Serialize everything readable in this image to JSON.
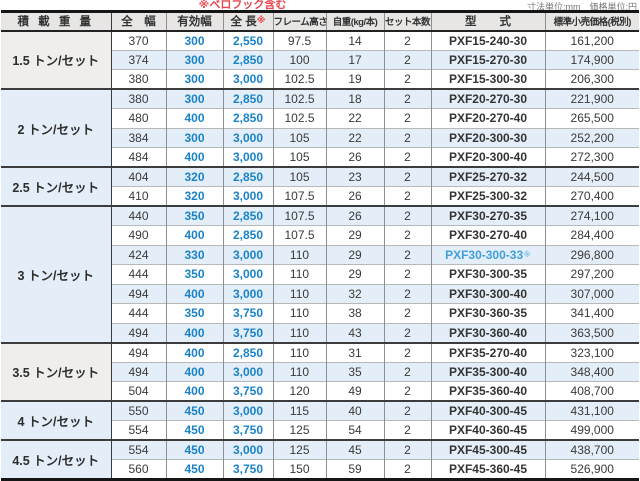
{
  "notes": {
    "hook_note": "※ベロフック含む",
    "units_note": "寸法単位:mm　価格単位:円"
  },
  "colors": {
    "accent_blue": "#1a83c8",
    "model_blue": "#3fa0dd",
    "note_red": "#e8474d",
    "stripe_blue": "#e4eef8",
    "header_gray": "#e7e6e4"
  },
  "table": {
    "headers": [
      "積 載 重 量",
      "全　幅",
      "有効幅",
      "全 長",
      "フレーム高さ",
      "自重(kg/本)",
      "セット本数",
      "型　　式",
      "標準小売価格(税別)"
    ],
    "header_note_mark": "※",
    "groups": [
      {
        "label": "1.5 トン/セット",
        "rows": [
          {
            "total_width": "370",
            "effective_width": "300",
            "total_length": "2,550",
            "frame_height": "97.5",
            "weight_kg": "14",
            "set_count": "2",
            "model": "PXF15-240-30",
            "price": "161,200"
          },
          {
            "total_width": "374",
            "effective_width": "300",
            "total_length": "2,850",
            "frame_height": "100",
            "weight_kg": "17",
            "set_count": "2",
            "model": "PXF15-270-30",
            "price": "174,900"
          },
          {
            "total_width": "380",
            "effective_width": "300",
            "total_length": "3,000",
            "frame_height": "102.5",
            "weight_kg": "19",
            "set_count": "2",
            "model": "PXF15-300-30",
            "price": "206,300"
          }
        ]
      },
      {
        "label": "2 トン/セット",
        "rows": [
          {
            "total_width": "380",
            "effective_width": "300",
            "total_length": "2,850",
            "frame_height": "102.5",
            "weight_kg": "18",
            "set_count": "2",
            "model": "PXF20-270-30",
            "price": "221,900"
          },
          {
            "total_width": "480",
            "effective_width": "400",
            "total_length": "2,850",
            "frame_height": "102.5",
            "weight_kg": "22",
            "set_count": "2",
            "model": "PXF20-270-40",
            "price": "265,500"
          },
          {
            "total_width": "384",
            "effective_width": "300",
            "total_length": "3,000",
            "frame_height": "105",
            "weight_kg": "22",
            "set_count": "2",
            "model": "PXF20-300-30",
            "price": "252,200"
          },
          {
            "total_width": "484",
            "effective_width": "400",
            "total_length": "3,000",
            "frame_height": "105",
            "weight_kg": "26",
            "set_count": "2",
            "model": "PXF20-300-40",
            "price": "272,300"
          }
        ]
      },
      {
        "label": "2.5 トン/セット",
        "rows": [
          {
            "total_width": "404",
            "effective_width": "320",
            "total_length": "2,850",
            "frame_height": "105",
            "weight_kg": "23",
            "set_count": "2",
            "model": "PXF25-270-32",
            "price": "244,500"
          },
          {
            "total_width": "410",
            "effective_width": "320",
            "total_length": "3,000",
            "frame_height": "107.5",
            "weight_kg": "26",
            "set_count": "2",
            "model": "PXF25-300-32",
            "price": "270,400"
          }
        ]
      },
      {
        "label": "3 トン/セット",
        "rows": [
          {
            "total_width": "440",
            "effective_width": "350",
            "total_length": "2,850",
            "frame_height": "107.5",
            "weight_kg": "26",
            "set_count": "2",
            "model": "PXF30-270-35",
            "price": "274,100"
          },
          {
            "total_width": "490",
            "effective_width": "400",
            "total_length": "2,850",
            "frame_height": "107.5",
            "weight_kg": "29",
            "set_count": "2",
            "model": "PXF30-270-40",
            "price": "284,400"
          },
          {
            "total_width": "424",
            "effective_width": "330",
            "total_length": "3,000",
            "frame_height": "110",
            "weight_kg": "29",
            "set_count": "2",
            "model": "PXF30-300-33",
            "model_blue": true,
            "model_note": "※",
            "price": "296,800"
          },
          {
            "total_width": "444",
            "effective_width": "350",
            "total_length": "3,000",
            "frame_height": "110",
            "weight_kg": "29",
            "set_count": "2",
            "model": "PXF30-300-35",
            "price": "297,200"
          },
          {
            "total_width": "494",
            "effective_width": "400",
            "total_length": "3,000",
            "frame_height": "110",
            "weight_kg": "32",
            "set_count": "2",
            "model": "PXF30-300-40",
            "price": "307,000"
          },
          {
            "total_width": "444",
            "effective_width": "350",
            "total_length": "3,750",
            "frame_height": "110",
            "weight_kg": "38",
            "set_count": "2",
            "model": "PXF30-360-35",
            "price": "341,400"
          },
          {
            "total_width": "494",
            "effective_width": "400",
            "total_length": "3,750",
            "frame_height": "110",
            "weight_kg": "43",
            "set_count": "2",
            "model": "PXF30-360-40",
            "price": "363,500"
          }
        ]
      },
      {
        "label": "3.5 トン/セット",
        "rows": [
          {
            "total_width": "494",
            "effective_width": "400",
            "total_length": "2,850",
            "frame_height": "110",
            "weight_kg": "31",
            "set_count": "2",
            "model": "PXF35-270-40",
            "price": "323,100"
          },
          {
            "total_width": "494",
            "effective_width": "400",
            "total_length": "3,000",
            "frame_height": "110",
            "weight_kg": "35",
            "set_count": "2",
            "model": "PXF35-300-40",
            "price": "348,400"
          },
          {
            "total_width": "504",
            "effective_width": "400",
            "total_length": "3,750",
            "frame_height": "120",
            "weight_kg": "49",
            "set_count": "2",
            "model": "PXF35-360-40",
            "price": "408,700"
          }
        ]
      },
      {
        "label": "4 トン/セット",
        "rows": [
          {
            "total_width": "550",
            "effective_width": "450",
            "total_length": "3,000",
            "frame_height": "115",
            "weight_kg": "40",
            "set_count": "2",
            "model": "PXF40-300-45",
            "price": "431,100"
          },
          {
            "total_width": "554",
            "effective_width": "450",
            "total_length": "3,750",
            "frame_height": "125",
            "weight_kg": "54",
            "set_count": "2",
            "model": "PXF40-360-45",
            "price": "499,000"
          }
        ]
      },
      {
        "label": "4.5 トン/セット",
        "rows": [
          {
            "total_width": "554",
            "effective_width": "450",
            "total_length": "3,000",
            "frame_height": "125",
            "weight_kg": "45",
            "set_count": "2",
            "model": "PXF45-300-45",
            "price": "438,700"
          },
          {
            "total_width": "560",
            "effective_width": "450",
            "total_length": "3,750",
            "frame_height": "150",
            "weight_kg": "59",
            "set_count": "2",
            "model": "PXF45-360-45",
            "price": "526,900"
          }
        ]
      }
    ]
  }
}
